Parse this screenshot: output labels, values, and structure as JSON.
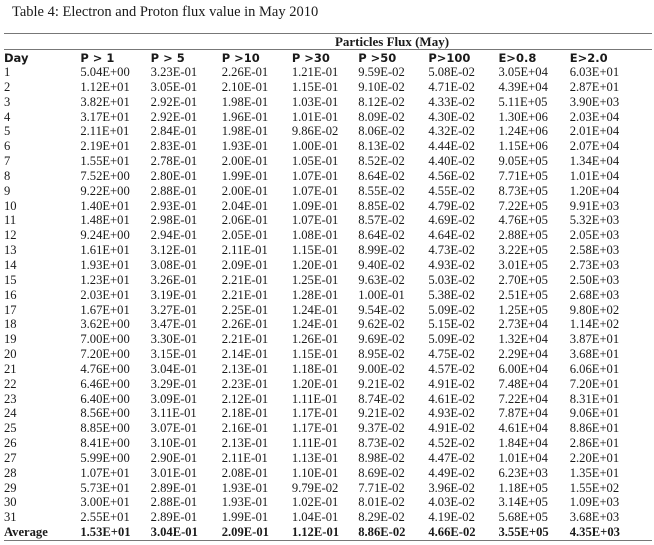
{
  "title": "Table 4: Electron and Proton flux value in May 2010",
  "group_header": "Particles Flux (May)",
  "columns": [
    "Day",
    "P > 1",
    "P > 5",
    "P >10",
    "P >30",
    "P >50",
    "P>100",
    "E>0.8",
    "E>2.0"
  ],
  "rows": [
    [
      "1",
      "5.04E+00",
      "3.23E-01",
      "2.26E-01",
      "1.21E-01",
      "9.59E-02",
      "5.08E-02",
      "3.05E+04",
      "6.03E+01"
    ],
    [
      "2",
      "1.12E+01",
      "3.05E-01",
      "2.10E-01",
      "1.15E-01",
      "9.10E-02",
      "4.71E-02",
      "4.39E+04",
      "2.87E+01"
    ],
    [
      "3",
      "3.82E+01",
      "2.92E-01",
      "1.98E-01",
      "1.03E-01",
      "8.12E-02",
      "4.33E-02",
      "5.11E+05",
      "3.90E+03"
    ],
    [
      "4",
      "3.17E+01",
      "2.92E-01",
      "1.96E-01",
      "1.01E-01",
      "8.09E-02",
      "4.30E-02",
      "1.30E+06",
      "2.03E+04"
    ],
    [
      "5",
      "2.11E+01",
      "2.84E-01",
      "1.98E-01",
      "9.86E-02",
      "8.06E-02",
      "4.32E-02",
      "1.24E+06",
      "2.01E+04"
    ],
    [
      "6",
      "2.19E+01",
      "2.83E-01",
      "1.93E-01",
      "1.00E-01",
      "8.13E-02",
      "4.44E-02",
      "1.15E+06",
      "2.07E+04"
    ],
    [
      "7",
      "1.55E+01",
      "2.78E-01",
      "2.00E-01",
      "1.05E-01",
      "8.52E-02",
      "4.40E-02",
      "9.05E+05",
      "1.34E+04"
    ],
    [
      "8",
      "7.52E+00",
      "2.80E-01",
      "1.99E-01",
      "1.07E-01",
      "8.64E-02",
      "4.56E-02",
      "7.71E+05",
      "1.01E+04"
    ],
    [
      "9",
      "9.22E+00",
      "2.88E-01",
      "2.00E-01",
      "1.07E-01",
      "8.55E-02",
      "4.55E-02",
      "8.73E+05",
      "1.20E+04"
    ],
    [
      "10",
      "1.40E+01",
      "2.93E-01",
      "2.04E-01",
      "1.09E-01",
      "8.85E-02",
      "4.79E-02",
      "7.22E+05",
      "9.91E+03"
    ],
    [
      "11",
      "1.48E+01",
      "2.98E-01",
      "2.06E-01",
      "1.07E-01",
      "8.57E-02",
      "4.69E-02",
      "4.76E+05",
      "5.32E+03"
    ],
    [
      "12",
      "9.24E+00",
      "2.94E-01",
      "2.05E-01",
      "1.08E-01",
      "8.64E-02",
      "4.64E-02",
      "2.88E+05",
      "2.05E+03"
    ],
    [
      "13",
      "1.61E+01",
      "3.12E-01",
      "2.11E-01",
      "1.15E-01",
      "8.99E-02",
      "4.73E-02",
      "3.22E+05",
      "2.58E+03"
    ],
    [
      "14",
      "1.93E+01",
      "3.08E-01",
      "2.09E-01",
      "1.20E-01",
      "9.40E-02",
      "4.93E-02",
      "3.01E+05",
      "2.73E+03"
    ],
    [
      "15",
      "1.23E+01",
      "3.26E-01",
      "2.21E-01",
      "1.25E-01",
      "9.63E-02",
      "5.03E-02",
      "2.70E+05",
      "2.50E+03"
    ],
    [
      "16",
      "2.03E+01",
      "3.19E-01",
      "2.21E-01",
      "1.28E-01",
      "1.00E-01",
      "5.38E-02",
      "2.51E+05",
      "2.68E+03"
    ],
    [
      "17",
      "1.67E+01",
      "3.27E-01",
      "2.25E-01",
      "1.24E-01",
      "9.54E-02",
      "5.09E-02",
      "1.25E+05",
      "9.80E+02"
    ],
    [
      "18",
      "3.62E+00",
      "3.47E-01",
      "2.26E-01",
      "1.24E-01",
      "9.62E-02",
      "5.15E-02",
      "2.73E+04",
      "1.14E+02"
    ],
    [
      "19",
      "7.00E+00",
      "3.30E-01",
      "2.21E-01",
      "1.26E-01",
      "9.69E-02",
      "5.09E-02",
      "1.32E+04",
      "3.87E+01"
    ],
    [
      "20",
      "7.20E+00",
      "3.15E-01",
      "2.14E-01",
      "1.15E-01",
      "8.95E-02",
      "4.75E-02",
      "2.29E+04",
      "3.68E+01"
    ],
    [
      "21",
      "4.76E+00",
      "3.04E-01",
      "2.13E-01",
      "1.18E-01",
      "9.00E-02",
      "4.57E-02",
      "6.00E+04",
      "6.06E+01"
    ],
    [
      "22",
      "6.46E+00",
      "3.29E-01",
      "2.23E-01",
      "1.20E-01",
      "9.21E-02",
      "4.91E-02",
      "7.48E+04",
      "7.20E+01"
    ],
    [
      "23",
      "6.40E+00",
      "3.09E-01",
      "2.12E-01",
      "1.11E-01",
      "8.74E-02",
      "4.61E-02",
      "7.22E+04",
      "8.31E+01"
    ],
    [
      "24",
      "8.56E+00",
      "3.11E-01",
      "2.18E-01",
      "1.17E-01",
      "9.21E-02",
      "4.93E-02",
      "7.87E+04",
      "9.06E+01"
    ],
    [
      "25",
      "8.85E+00",
      "3.07E-01",
      "2.16E-01",
      "1.17E-01",
      "9.37E-02",
      "4.91E-02",
      "4.61E+04",
      "8.86E+01"
    ],
    [
      "26",
      "8.41E+00",
      "3.10E-01",
      "2.13E-01",
      "1.11E-01",
      "8.73E-02",
      "4.52E-02",
      "1.84E+04",
      "2.86E+01"
    ],
    [
      "27",
      "5.99E+00",
      "2.90E-01",
      "2.11E-01",
      "1.13E-01",
      "8.98E-02",
      "4.47E-02",
      "1.01E+04",
      "2.20E+01"
    ],
    [
      "28",
      "1.07E+01",
      "3.01E-01",
      "2.08E-01",
      "1.10E-01",
      "8.69E-02",
      "4.49E-02",
      "6.23E+03",
      "1.35E+01"
    ],
    [
      "29",
      "5.73E+01",
      "2.89E-01",
      "1.93E-01",
      "9.79E-02",
      "7.71E-02",
      "3.96E-02",
      "1.18E+05",
      "1.55E+02"
    ],
    [
      "30",
      "3.00E+01",
      "2.88E-01",
      "1.93E-01",
      "1.02E-01",
      "8.01E-02",
      "4.03E-02",
      "3.14E+05",
      "1.09E+03"
    ],
    [
      "31",
      "2.55E+01",
      "2.89E-01",
      "1.99E-01",
      "1.04E-01",
      "8.29E-02",
      "4.19E-02",
      "5.68E+05",
      "3.68E+03"
    ]
  ],
  "average": [
    "Average",
    "1.53E+01",
    "3.04E-01",
    "2.09E-01",
    "1.12E-01",
    "8.86E-02",
    "4.66E-02",
    "3.55E+05",
    "4.35E+03"
  ]
}
